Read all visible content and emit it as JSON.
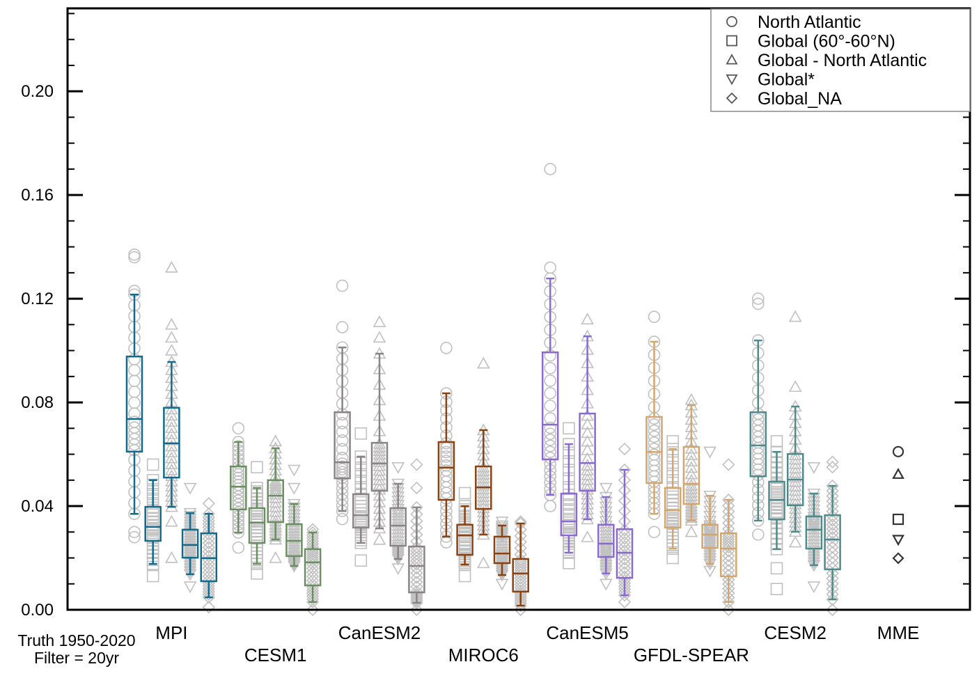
{
  "chart_data": {
    "type": "box",
    "title": "",
    "xlabel": "",
    "ylabel": "",
    "ylim": [
      0,
      0.232
    ],
    "yticks": [
      {
        "value": 0.0,
        "label": "0.00"
      },
      {
        "value": 0.04,
        "label": "0.04"
      },
      {
        "value": 0.08,
        "label": "0.08"
      },
      {
        "value": 0.12,
        "label": "0.12"
      },
      {
        "value": 0.16,
        "label": "0.16"
      },
      {
        "value": 0.2,
        "label": "0.20"
      }
    ],
    "minor_tick_step": 0.01,
    "grid": false,
    "legend_position": "top-right",
    "legend": [
      {
        "marker": "circle",
        "label": "North Atlantic"
      },
      {
        "marker": "square",
        "label": "Global (60°-60°N)"
      },
      {
        "marker": "triangle-up",
        "label": "Global - North Atlantic"
      },
      {
        "marker": "triangle-down",
        "label": "Global*"
      },
      {
        "marker": "diamond",
        "label": "Global_NA"
      }
    ],
    "marker_order": [
      "circle",
      "square",
      "triangle-up",
      "triangle-down",
      "diamond"
    ],
    "point_color": "#c0c0c0",
    "annotation": [
      "Truth 1950-2020",
      "Filter = 20yr"
    ],
    "models": [
      {
        "name": "MPI",
        "label_row": 1,
        "color": "#0f6a8d",
        "boxes": [
          {
            "low": 0.037,
            "q1": 0.061,
            "median": 0.0736,
            "q3": 0.0977,
            "high": 0.1216,
            "outliers": [
              0.136,
              0.137,
              0.123,
              0.028,
              0.03
            ]
          },
          {
            "low": 0.0177,
            "q1": 0.0266,
            "median": 0.032,
            "q3": 0.0397,
            "high": 0.05,
            "outliers": [
              0.056,
              0.013
            ]
          },
          {
            "low": 0.0397,
            "q1": 0.051,
            "median": 0.0642,
            "q3": 0.0779,
            "high": 0.0956,
            "outliers": [
              0.132,
              0.11,
              0.105,
              0.1,
              0.034,
              0.02
            ]
          },
          {
            "low": 0.0137,
            "q1": 0.0201,
            "median": 0.025,
            "q3": 0.0309,
            "high": 0.0373,
            "outliers": [
              0.047,
              0.009
            ]
          },
          {
            "low": 0.0048,
            "q1": 0.011,
            "median": 0.0199,
            "q3": 0.0295,
            "high": 0.037,
            "outliers": [
              0.041,
              0.001
            ]
          }
        ]
      },
      {
        "name": "CESM1",
        "label_row": 2,
        "color": "#6a8e60",
        "boxes": [
          {
            "low": 0.0298,
            "q1": 0.0387,
            "median": 0.0475,
            "q3": 0.0553,
            "high": 0.0647,
            "outliers": [
              0.07,
              0.024
            ]
          },
          {
            "low": 0.0177,
            "q1": 0.0258,
            "median": 0.0336,
            "q3": 0.0392,
            "high": 0.047,
            "outliers": [
              0.055,
              0.014
            ]
          },
          {
            "low": 0.0271,
            "q1": 0.0338,
            "median": 0.044,
            "q3": 0.05,
            "high": 0.0623,
            "outliers": [
              0.065,
              0.02
            ]
          },
          {
            "low": 0.0169,
            "q1": 0.0207,
            "median": 0.0266,
            "q3": 0.033,
            "high": 0.0408,
            "outliers": [
              0.054,
              0.047
            ]
          },
          {
            "low": 0.003,
            "q1": 0.0094,
            "median": 0.0183,
            "q3": 0.0234,
            "high": 0.0298,
            "outliers": [
              0.031,
              0.0
            ]
          }
        ]
      },
      {
        "name": "CanESM2",
        "label_row": 1,
        "color": "#8a8386",
        "boxes": [
          {
            "low": 0.0381,
            "q1": 0.0507,
            "median": 0.0569,
            "q3": 0.0762,
            "high": 0.1012,
            "outliers": [
              0.125,
              0.109,
              0.035
            ]
          },
          {
            "low": 0.0258,
            "q1": 0.0317,
            "median": 0.0365,
            "q3": 0.0446,
            "high": 0.0591,
            "outliers": [
              0.068,
              0.019
            ]
          },
          {
            "low": 0.0314,
            "q1": 0.0459,
            "median": 0.0564,
            "q3": 0.0644,
            "high": 0.0988,
            "outliers": [
              0.111,
              0.105,
              0.027
            ]
          },
          {
            "low": 0.0196,
            "q1": 0.0247,
            "median": 0.0325,
            "q3": 0.0392,
            "high": 0.0486,
            "outliers": [
              0.055,
              0.016
            ]
          },
          {
            "low": 0.0027,
            "q1": 0.0067,
            "median": 0.0169,
            "q3": 0.0244,
            "high": 0.0395,
            "outliers": [
              0.056,
              0.047,
              0.0
            ]
          }
        ]
      },
      {
        "name": "MIROC6",
        "label_row": 2,
        "color": "#8a4211",
        "boxes": [
          {
            "low": 0.0282,
            "q1": 0.0424,
            "median": 0.0548,
            "q3": 0.0647,
            "high": 0.0835,
            "outliers": [
              0.101,
              0.026
            ]
          },
          {
            "low": 0.0174,
            "q1": 0.0212,
            "median": 0.0287,
            "q3": 0.0328,
            "high": 0.04,
            "outliers": [
              0.045,
              0.013
            ]
          },
          {
            "low": 0.029,
            "q1": 0.0389,
            "median": 0.0472,
            "q3": 0.0553,
            "high": 0.0693,
            "outliers": [
              0.095,
              0.018
            ]
          },
          {
            "low": 0.0134,
            "q1": 0.018,
            "median": 0.0217,
            "q3": 0.0282,
            "high": 0.0325,
            "outliers": [
              0.034,
              0.01
            ]
          },
          {
            "low": 0.0016,
            "q1": 0.007,
            "median": 0.014,
            "q3": 0.0196,
            "high": 0.0333,
            "outliers": [
              0.034,
              0.0
            ]
          }
        ]
      },
      {
        "name": "CanESM5",
        "label_row": 1,
        "color": "#8a6ad2",
        "boxes": [
          {
            "low": 0.0443,
            "q1": 0.058,
            "median": 0.0714,
            "q3": 0.0993,
            "high": 0.1278,
            "outliers": [
              0.17,
              0.132,
              0.04
            ]
          },
          {
            "low": 0.022,
            "q1": 0.0287,
            "median": 0.0341,
            "q3": 0.0448,
            "high": 0.0639,
            "outliers": [
              0.07,
              0.018
            ]
          },
          {
            "low": 0.0349,
            "q1": 0.0459,
            "median": 0.0566,
            "q3": 0.0757,
            "high": 0.1055,
            "outliers": [
              0.112,
              0.028
            ]
          },
          {
            "low": 0.014,
            "q1": 0.0204,
            "median": 0.0255,
            "q3": 0.0328,
            "high": 0.0435,
            "outliers": [
              0.047,
              0.01
            ]
          },
          {
            "low": 0.0056,
            "q1": 0.0123,
            "median": 0.022,
            "q3": 0.0311,
            "high": 0.054,
            "outliers": [
              0.062,
              0.003
            ]
          }
        ]
      },
      {
        "name": "GFDL-SPEAR",
        "label_row": 2,
        "color": "#d2a66e",
        "boxes": [
          {
            "low": 0.037,
            "q1": 0.0489,
            "median": 0.0609,
            "q3": 0.0744,
            "high": 0.1034,
            "outliers": [
              0.113,
              0.03
            ]
          },
          {
            "low": 0.0236,
            "q1": 0.0317,
            "median": 0.0384,
            "q3": 0.047,
            "high": 0.062,
            "outliers": [
              0.065,
              0.02
            ]
          },
          {
            "low": 0.0344,
            "q1": 0.0408,
            "median": 0.0486,
            "q3": 0.0628,
            "high": 0.0789,
            "outliers": [
              0.081,
              0.03
            ]
          },
          {
            "low": 0.0177,
            "q1": 0.0239,
            "median": 0.029,
            "q3": 0.0328,
            "high": 0.044,
            "outliers": [
              0.061,
              0.015
            ]
          },
          {
            "low": 0.003,
            "q1": 0.0129,
            "median": 0.0236,
            "q3": 0.0295,
            "high": 0.0424,
            "outliers": [
              0.056,
              0.0
            ]
          }
        ]
      },
      {
        "name": "CESM2",
        "label_row": 1,
        "color": "#4e898b",
        "boxes": [
          {
            "low": 0.0344,
            "q1": 0.0515,
            "median": 0.0634,
            "q3": 0.0762,
            "high": 0.1039,
            "outliers": [
              0.12,
              0.118,
              0.029
            ]
          },
          {
            "low": 0.0234,
            "q1": 0.0349,
            "median": 0.0424,
            "q3": 0.0494,
            "high": 0.0609,
            "outliers": [
              0.065,
              0.016,
              0.008
            ]
          },
          {
            "low": 0.0301,
            "q1": 0.0403,
            "median": 0.0502,
            "q3": 0.0601,
            "high": 0.0784,
            "outliers": [
              0.113,
              0.086,
              0.026
            ]
          },
          {
            "low": 0.0172,
            "q1": 0.0236,
            "median": 0.0309,
            "q3": 0.036,
            "high": 0.0448,
            "outliers": [
              0.055,
              0.009
            ]
          },
          {
            "low": 0.004,
            "q1": 0.0156,
            "median": 0.0271,
            "q3": 0.0365,
            "high": 0.0478,
            "outliers": [
              0.057,
              0.055,
              0.0
            ]
          }
        ]
      }
    ],
    "mme": {
      "name": "MME",
      "label_row": 1,
      "color": "#333333",
      "values": {
        "circle": 0.061,
        "triangle-up": 0.0523,
        "square": 0.0349,
        "triangle-down": 0.0271,
        "diamond": 0.0199
      }
    }
  }
}
